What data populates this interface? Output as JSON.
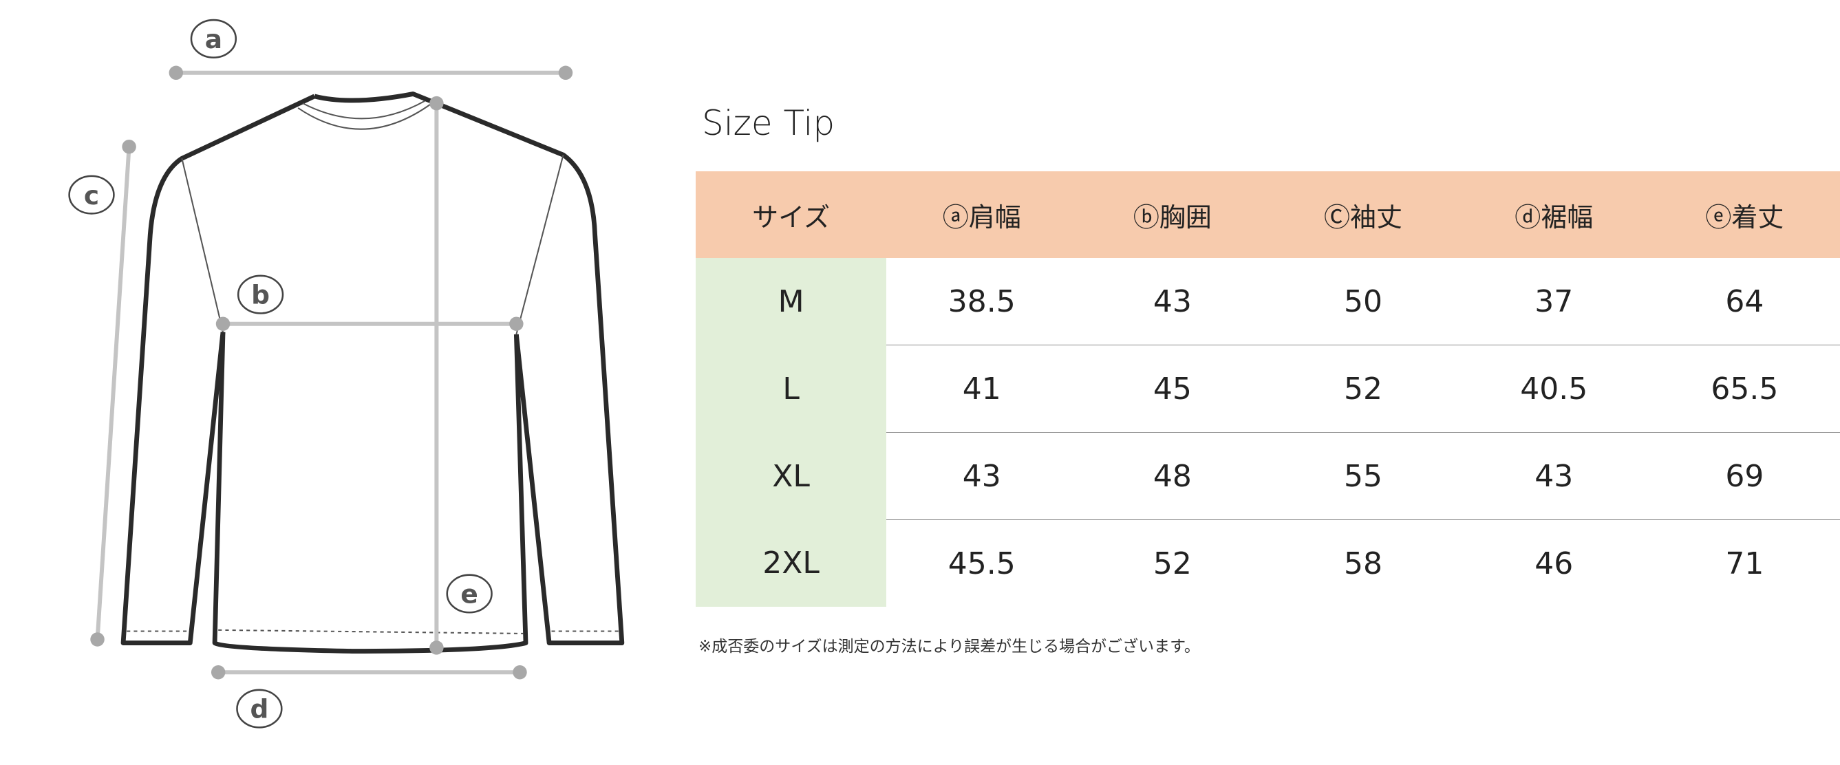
{
  "diagram": {
    "labels": [
      "a",
      "b",
      "c",
      "d",
      "e"
    ]
  },
  "title": "Size Tip",
  "table": {
    "headers": [
      "サイズ",
      "ⓐ肩幅",
      "ⓑ胸囲",
      "Ⓒ袖丈",
      "ⓓ裾幅",
      "ⓔ着丈"
    ],
    "rows": [
      [
        "M",
        "38.5",
        "43",
        "50",
        "37",
        "64"
      ],
      [
        "L",
        "41",
        "45",
        "52",
        "40.5",
        "65.5"
      ],
      [
        "XL",
        "43",
        "48",
        "55",
        "43",
        "69"
      ],
      [
        "2XL",
        "45.5",
        "52",
        "58",
        "46",
        "71"
      ]
    ]
  },
  "note": "※成否委のサイズは測定の方法により誤差が生じる場合がございます。",
  "colors": {
    "header_bg": "#f7cbad",
    "size_col_bg": "#e2efd9",
    "measure_line": "#c8c8c8"
  }
}
